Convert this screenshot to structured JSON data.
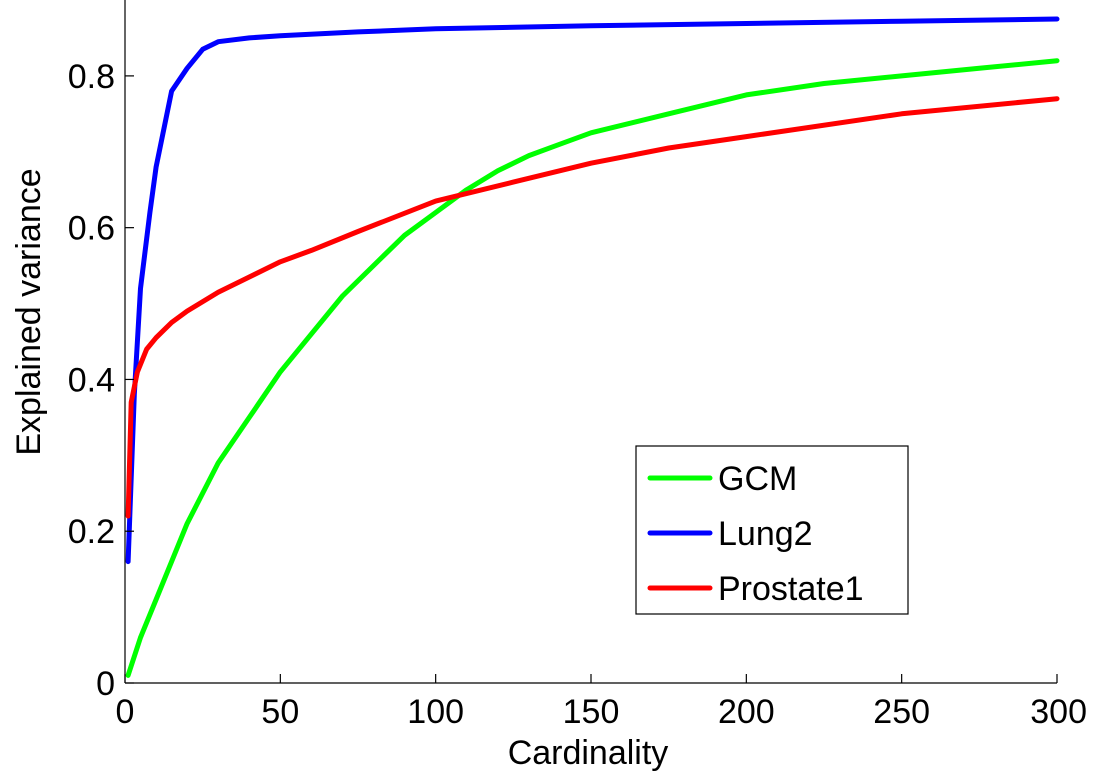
{
  "chart_data": {
    "type": "line",
    "title": "",
    "xlabel": "Cardinality",
    "ylabel": "Explained variance",
    "xlim": [
      0,
      300
    ],
    "ylim": [
      0,
      0.9
    ],
    "xticks": [
      0,
      50,
      100,
      150,
      200,
      250,
      300
    ],
    "xtick_labels": [
      "0",
      "50",
      "100",
      "150",
      "200",
      "250",
      "300"
    ],
    "yticks": [
      0,
      0.2,
      0.4,
      0.6,
      0.8
    ],
    "ytick_labels": [
      "0",
      "0.2",
      "0.4",
      "0.6",
      "0.8"
    ],
    "grid": false,
    "legend_position": "bottom-right",
    "series": [
      {
        "name": "GCM",
        "color": "#00ff00",
        "x": [
          1,
          5,
          10,
          15,
          20,
          30,
          40,
          50,
          60,
          70,
          80,
          90,
          100,
          110,
          120,
          130,
          140,
          150,
          175,
          200,
          225,
          250,
          275,
          300
        ],
        "y": [
          0.01,
          0.06,
          0.11,
          0.16,
          0.21,
          0.29,
          0.35,
          0.41,
          0.46,
          0.51,
          0.55,
          0.59,
          0.62,
          0.65,
          0.675,
          0.695,
          0.71,
          0.725,
          0.75,
          0.775,
          0.79,
          0.8,
          0.81,
          0.82
        ]
      },
      {
        "name": "Lung2",
        "color": "#0000ff",
        "x": [
          1,
          3,
          5,
          8,
          10,
          15,
          20,
          25,
          30,
          40,
          50,
          75,
          100,
          150,
          200,
          250,
          300
        ],
        "y": [
          0.16,
          0.38,
          0.52,
          0.62,
          0.68,
          0.78,
          0.81,
          0.835,
          0.845,
          0.85,
          0.853,
          0.858,
          0.862,
          0.866,
          0.869,
          0.872,
          0.875
        ]
      },
      {
        "name": "Prostate1",
        "color": "#ff0000",
        "x": [
          1,
          2,
          4,
          7,
          10,
          15,
          20,
          30,
          40,
          50,
          60,
          75,
          100,
          125,
          150,
          175,
          200,
          250,
          300
        ],
        "y": [
          0.22,
          0.37,
          0.41,
          0.44,
          0.455,
          0.475,
          0.49,
          0.515,
          0.535,
          0.555,
          0.57,
          0.595,
          0.635,
          0.66,
          0.685,
          0.705,
          0.72,
          0.75,
          0.77
        ]
      }
    ]
  }
}
